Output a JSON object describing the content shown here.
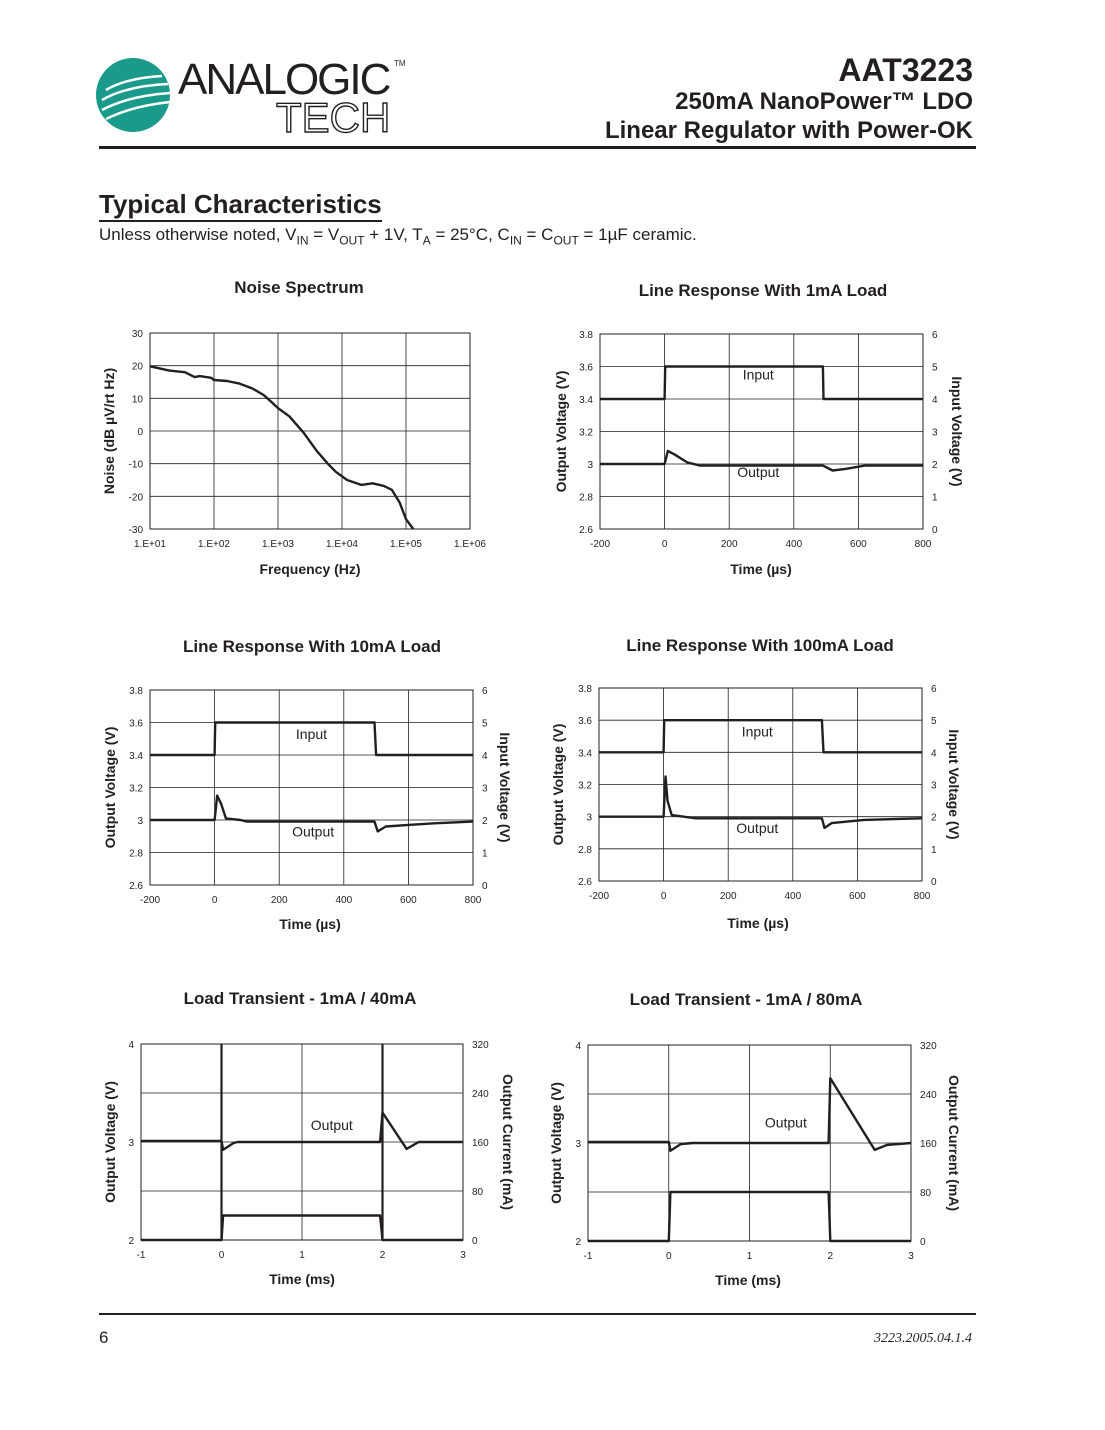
{
  "header": {
    "logo": {
      "text": "ANALOGIC",
      "subtext": "TECH",
      "tm": "TM",
      "color": "#1a9a8a"
    },
    "part_number": "AAT3223",
    "subtitle_line1": "250mA NanoPower™ LDO",
    "subtitle_line2": "Linear Regulator with Power-OK"
  },
  "section": {
    "title": "Typical Characteristics",
    "conditions": {
      "p1": "Unless otherwise noted, V",
      "s1": "IN",
      "p2": " = V",
      "s2": "OUT",
      "p3": " + 1V, T",
      "s3": "A",
      "p4": " = 25°C, C",
      "s4": "IN",
      "p5": " = C",
      "s5": "OUT",
      "p6": " = 1µF ceramic."
    }
  },
  "footer": {
    "page": "6",
    "doc_id": "3223.2005.04.1.4"
  },
  "chart_data": [
    {
      "type": "line",
      "title": "Noise Spectrum",
      "xlabel": "Frequency (Hz)",
      "ylabel": "Noise (dB µV/rt Hz)",
      "xscale": "log",
      "xlim": [
        10,
        1000000
      ],
      "xticks": [
        10,
        100,
        1000,
        10000,
        100000,
        1000000
      ],
      "xtick_labels": [
        "1.E+01",
        "1.E+02",
        "1.E+03",
        "1.E+04",
        "1.E+05",
        "1.E+06"
      ],
      "ylim": [
        -30,
        30
      ],
      "yticks": [
        -30,
        -20,
        -10,
        0,
        10,
        20,
        30
      ],
      "grid": true,
      "series": [
        {
          "axis": "left",
          "points": [
            [
              10,
              19.8
            ],
            [
              20,
              18.5
            ],
            [
              35,
              18
            ],
            [
              50,
              16.5
            ],
            [
              60,
              16.8
            ],
            [
              90,
              16.3
            ],
            [
              100,
              15.6
            ],
            [
              160,
              15.3
            ],
            [
              250,
              14.5
            ],
            [
              400,
              13
            ],
            [
              600,
              11
            ],
            [
              800,
              8.8
            ],
            [
              1000,
              7
            ],
            [
              1500,
              4.5
            ],
            [
              2500,
              -0.5
            ],
            [
              4000,
              -6
            ],
            [
              6000,
              -10
            ],
            [
              8000,
              -12.5
            ],
            [
              12000,
              -15
            ],
            [
              20000,
              -16.5
            ],
            [
              30000,
              -16
            ],
            [
              45000,
              -16.8
            ],
            [
              60000,
              -18
            ],
            [
              80000,
              -22
            ],
            [
              100000,
              -27
            ],
            [
              130000,
              -30
            ]
          ]
        }
      ],
      "annotations": []
    },
    {
      "type": "line",
      "title": "Line Response With 1mA Load",
      "xlabel": "Time (µs)",
      "ylabel": "Output Voltage (V)",
      "y2label": "Input Voltage (V)",
      "xlim": [
        -200,
        800
      ],
      "xticks": [
        -200,
        0,
        200,
        400,
        600,
        800
      ],
      "ylim": [
        2.6,
        3.8
      ],
      "yticks": [
        2.6,
        2.8,
        3,
        3.2,
        3.4,
        3.6,
        3.8
      ],
      "y2lim": [
        0,
        6
      ],
      "y2ticks": [
        0,
        1,
        2,
        3,
        4,
        5,
        6
      ],
      "grid": true,
      "series": [
        {
          "name": "Input",
          "axis": "right",
          "points": [
            [
              -200,
              4
            ],
            [
              0,
              4
            ],
            [
              2,
              5
            ],
            [
              490,
              5
            ],
            [
              492,
              4
            ],
            [
              800,
              4
            ]
          ]
        },
        {
          "name": "Output",
          "axis": "left",
          "points": [
            [
              -200,
              3
            ],
            [
              0,
              3
            ],
            [
              10,
              3.08
            ],
            [
              30,
              3.06
            ],
            [
              70,
              3.01
            ],
            [
              110,
              2.99
            ],
            [
              490,
              2.99
            ],
            [
              520,
              2.96
            ],
            [
              560,
              2.97
            ],
            [
              620,
              2.99
            ],
            [
              800,
              2.99
            ]
          ]
        }
      ],
      "annotations": [
        {
          "text": "Input",
          "x": 290,
          "y": 3.52
        },
        {
          "text": "Output",
          "x": 290,
          "y": 2.92
        }
      ]
    },
    {
      "type": "line",
      "title": "Line Response With 10mA Load",
      "xlabel": "Time (µs)",
      "ylabel": "Output Voltage (V)",
      "y2label": "Input Voltage (V)",
      "xlim": [
        -200,
        800
      ],
      "xticks": [
        -200,
        0,
        200,
        400,
        600,
        800
      ],
      "ylim": [
        2.6,
        3.8
      ],
      "yticks": [
        2.6,
        2.8,
        3,
        3.2,
        3.4,
        3.6,
        3.8
      ],
      "y2lim": [
        0,
        6
      ],
      "y2ticks": [
        0,
        1,
        2,
        3,
        4,
        5,
        6
      ],
      "grid": true,
      "series": [
        {
          "name": "Input",
          "axis": "right",
          "points": [
            [
              -200,
              4
            ],
            [
              0,
              4
            ],
            [
              2,
              5
            ],
            [
              495,
              5
            ],
            [
              500,
              4
            ],
            [
              800,
              4
            ]
          ]
        },
        {
          "name": "Output",
          "axis": "left",
          "points": [
            [
              -200,
              3
            ],
            [
              0,
              3
            ],
            [
              8,
              3.15
            ],
            [
              20,
              3.1
            ],
            [
              35,
              3.01
            ],
            [
              80,
              3.0
            ],
            [
              100,
              2.99
            ],
            [
              495,
              2.99
            ],
            [
              505,
              2.93
            ],
            [
              530,
              2.96
            ],
            [
              600,
              2.97
            ],
            [
              680,
              2.98
            ],
            [
              800,
              2.99
            ]
          ]
        }
      ],
      "annotations": [
        {
          "text": "Input",
          "x": 300,
          "y": 3.5
        },
        {
          "text": "Output",
          "x": 305,
          "y": 2.9
        }
      ]
    },
    {
      "type": "line",
      "title": "Line Response With 100mA Load",
      "xlabel": "Time (µs)",
      "ylabel": "Output Voltage (V)",
      "y2label": "Input Voltage (V)",
      "xlim": [
        -200,
        800
      ],
      "xticks": [
        -200,
        0,
        200,
        400,
        600,
        800
      ],
      "ylim": [
        2.6,
        3.8
      ],
      "yticks": [
        2.6,
        2.8,
        3,
        3.2,
        3.4,
        3.6,
        3.8
      ],
      "y2lim": [
        0,
        6
      ],
      "y2ticks": [
        0,
        1,
        2,
        3,
        4,
        5,
        6
      ],
      "grid": true,
      "series": [
        {
          "name": "Input",
          "axis": "right",
          "points": [
            [
              -200,
              4
            ],
            [
              0,
              4
            ],
            [
              2,
              5
            ],
            [
              490,
              5
            ],
            [
              495,
              4
            ],
            [
              800,
              4
            ]
          ]
        },
        {
          "name": "Output",
          "axis": "left",
          "points": [
            [
              -200,
              3
            ],
            [
              0,
              3
            ],
            [
              6,
              3.25
            ],
            [
              12,
              3.1
            ],
            [
              25,
              3.01
            ],
            [
              100,
              2.99
            ],
            [
              490,
              2.99
            ],
            [
              498,
              2.93
            ],
            [
              520,
              2.96
            ],
            [
              620,
              2.98
            ],
            [
              800,
              2.99
            ]
          ]
        }
      ],
      "annotations": [
        {
          "text": "Input",
          "x": 290,
          "y": 3.5
        },
        {
          "text": "Output",
          "x": 290,
          "y": 2.9
        }
      ]
    },
    {
      "type": "line",
      "title": "Load Transient - 1mA / 40mA",
      "xlabel": "Time (ms)",
      "ylabel": "Output Voltage (V)",
      "y2label": "Output Current (mA)",
      "xlim": [
        -1,
        3
      ],
      "xticks": [
        -1,
        0,
        1,
        2,
        3
      ],
      "ylim": [
        2,
        4
      ],
      "yticks": [
        2,
        3,
        4
      ],
      "y2lim": [
        0,
        320
      ],
      "y2ticks": [
        0,
        80,
        160,
        240,
        320
      ],
      "grid": true,
      "series": [
        {
          "name": "Output",
          "axis": "left",
          "points": [
            [
              -1,
              3.01
            ],
            [
              0,
              3.01
            ],
            [
              0.02,
              2.92
            ],
            [
              0.15,
              2.99
            ],
            [
              0.2,
              3.0
            ],
            [
              1.97,
              3.0
            ],
            [
              2,
              3.3
            ],
            [
              2.3,
              2.93
            ],
            [
              2.45,
              3.0
            ],
            [
              3,
              3.0
            ]
          ]
        },
        {
          "axis": "right",
          "points": [
            [
              -1,
              0
            ],
            [
              0,
              0
            ],
            [
              0.02,
              40
            ],
            [
              1.97,
              40
            ],
            [
              2,
              0
            ],
            [
              3,
              0
            ]
          ]
        }
      ],
      "markers_x": [
        0,
        2
      ],
      "annotations": [
        {
          "text": "Output",
          "x": 1.37,
          "y": 3.12
        }
      ]
    },
    {
      "type": "line",
      "title": "Load Transient - 1mA / 80mA",
      "xlabel": "Time (ms)",
      "ylabel": "Output Voltage (V)",
      "y2label": "Output Current (mA)",
      "xlim": [
        -1,
        3
      ],
      "xticks": [
        -1,
        0,
        1,
        2,
        3
      ],
      "ylim": [
        2,
        4
      ],
      "yticks": [
        2,
        3,
        4
      ],
      "y2lim": [
        0,
        320
      ],
      "y2ticks": [
        0,
        80,
        160,
        240,
        320
      ],
      "grid": true,
      "series": [
        {
          "name": "Output",
          "axis": "left",
          "points": [
            [
              -1,
              3.01
            ],
            [
              0,
              3.01
            ],
            [
              0.02,
              2.92
            ],
            [
              0.15,
              2.99
            ],
            [
              0.3,
              3.0
            ],
            [
              1.98,
              3.0
            ],
            [
              2,
              3.66
            ],
            [
              2.55,
              2.93
            ],
            [
              2.7,
              2.98
            ],
            [
              3,
              3.0
            ]
          ]
        },
        {
          "axis": "right",
          "points": [
            [
              -1,
              0
            ],
            [
              0,
              0
            ],
            [
              0.02,
              80
            ],
            [
              1.98,
              80
            ],
            [
              2,
              0
            ],
            [
              3,
              0
            ]
          ]
        }
      ],
      "annotations": [
        {
          "text": "Output",
          "x": 1.45,
          "y": 3.16
        }
      ]
    }
  ]
}
